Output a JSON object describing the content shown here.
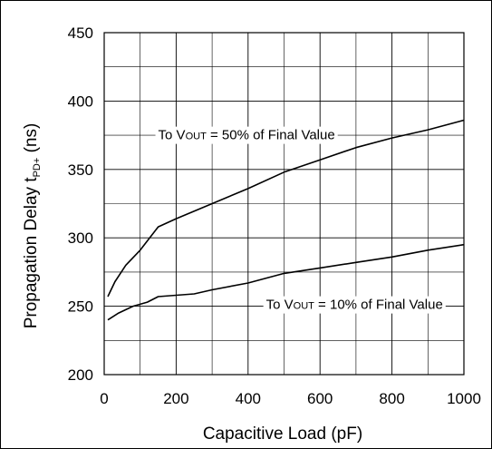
{
  "chart_data": {
    "type": "line",
    "title": "",
    "xlabel": "Capacitive Load (pF)",
    "ylabel": "Propagation Delay t",
    "ylabel_sub": "PD+",
    "ylabel_unit": " (ns)",
    "xlim": [
      0,
      1000
    ],
    "ylim": [
      200,
      450
    ],
    "x_ticks": [
      "0",
      "200",
      "400",
      "600",
      "800",
      "1000"
    ],
    "y_ticks": [
      "200",
      "250",
      "300",
      "350",
      "400",
      "450"
    ],
    "x_minor_step": 100,
    "y_minor_step": 25,
    "grid": true,
    "series": [
      {
        "label": "To VOUT = 50% of Final Value",
        "points": [
          [
            10,
            257
          ],
          [
            30,
            268
          ],
          [
            60,
            280
          ],
          [
            100,
            291
          ],
          [
            150,
            308
          ],
          [
            200,
            314
          ],
          [
            300,
            325
          ],
          [
            400,
            336
          ],
          [
            500,
            348
          ],
          [
            600,
            357
          ],
          [
            700,
            366
          ],
          [
            800,
            373
          ],
          [
            900,
            379
          ],
          [
            1000,
            386
          ]
        ]
      },
      {
        "label": "To VOUT = 10% of Final Value",
        "points": [
          [
            10,
            240
          ],
          [
            40,
            245
          ],
          [
            80,
            250
          ],
          [
            120,
            253
          ],
          [
            150,
            257
          ],
          [
            200,
            258
          ],
          [
            250,
            259
          ],
          [
            300,
            262
          ],
          [
            400,
            267
          ],
          [
            500,
            274
          ],
          [
            600,
            278
          ],
          [
            700,
            282
          ],
          [
            800,
            286
          ],
          [
            900,
            291
          ],
          [
            1000,
            295
          ]
        ]
      }
    ],
    "annotations": [
      {
        "prefix": "To V",
        "sub": "OUT",
        "suffix": " = 50% of Final Value",
        "at": [
          150,
          372
        ]
      },
      {
        "prefix": "To V",
        "sub": "OUT",
        "suffix": " = 10% of Final Value",
        "at": [
          450,
          248
        ]
      }
    ]
  }
}
